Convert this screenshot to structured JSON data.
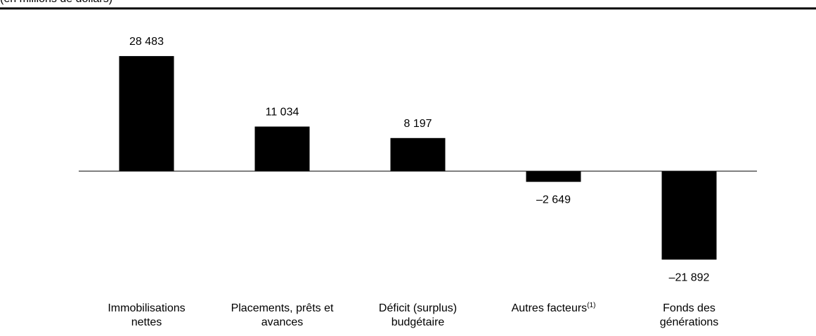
{
  "chart_data": {
    "type": "bar",
    "subtitle": "(en millions de dollars)",
    "categories": [
      "Immobilisations nettes",
      "Placements, prêts et avances",
      "Déficit (surplus) budgétaire",
      "Autres facteurs",
      "Fonds des générations"
    ],
    "category_superscripts": {
      "3": "(1)"
    },
    "values": [
      28483,
      11034,
      8197,
      -2649,
      -21892
    ],
    "value_labels": [
      "28 483",
      "11 034",
      "8 197",
      "–2 649",
      "–21 892"
    ],
    "color": "#000000",
    "ylim": [
      -30000,
      35000
    ]
  }
}
